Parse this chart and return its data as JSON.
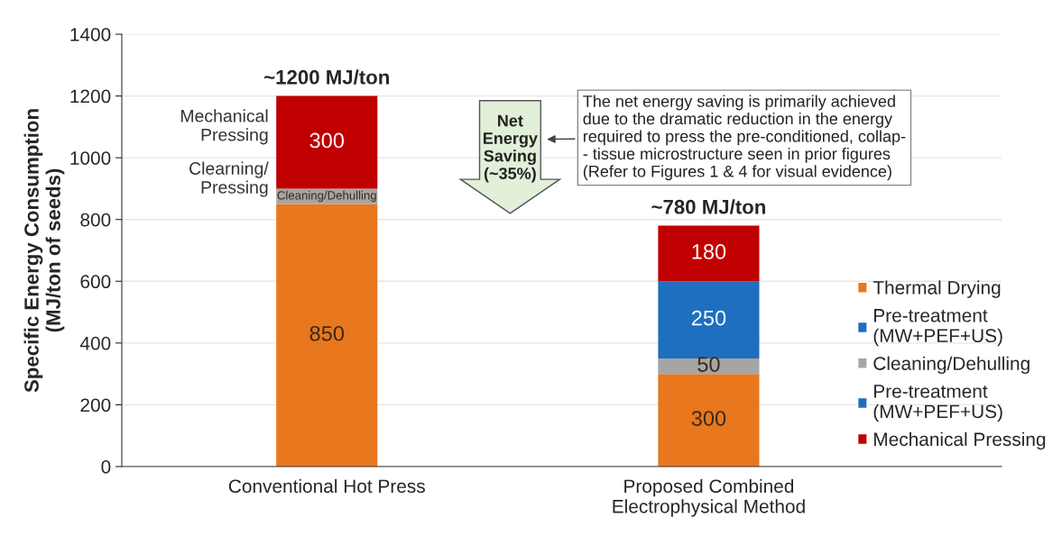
{
  "chart_data": {
    "type": "bar",
    "stacked": true,
    "ylabel": "Specific Energy Consumption\n(MJ/ton of seeds)",
    "categories": [
      "Conventional Hot Press",
      "Proposed Combined\nElectrophysical Method"
    ],
    "series": [
      {
        "name": "Thermal Drying",
        "color": "#e8771e",
        "values": [
          850,
          300
        ],
        "value_labels": [
          "850",
          "300"
        ]
      },
      {
        "name": "Pre-treatment\n(MW+PEF+US)",
        "color": "#1f6fc0",
        "values": [
          null,
          null
        ]
      },
      {
        "name": "Cleaning/Dehulling",
        "color": "#a5a5a5",
        "values": [
          50,
          50
        ],
        "value_labels": [
          "Cleaning/Dehulling",
          "50"
        ]
      },
      {
        "name": "Pre-treatment\n(MW+PEF+US)",
        "color": "#1f6fc0",
        "values": [
          null,
          250
        ],
        "value_labels": [
          null,
          "250"
        ]
      },
      {
        "name": "Mechanical Pressing",
        "color": "#c00000",
        "values": [
          300,
          180
        ],
        "value_labels": [
          "300",
          "180"
        ]
      }
    ],
    "totals": [
      "~1200 MJ/ton",
      "~780 MJ/ton"
    ],
    "ylim": [
      0,
      1400
    ],
    "yticks": [
      0,
      200,
      400,
      600,
      800,
      1000,
      1200,
      1400
    ],
    "grid": "y",
    "legend": "bottom right",
    "annotations": [
      "Mechanical\nPressing",
      "Clearning/\nPressing",
      "Net\nEnergy\nSaving\n(~35%)",
      "The net energy saving is primarily achieved\ndue to the dramatic reduction in the energy\nrequired to press the pre-conditioned, collap-\n- tissue microstructure seen in prior figures\n(Refer to Figures 1 & 4 for visual evidence)"
    ]
  }
}
